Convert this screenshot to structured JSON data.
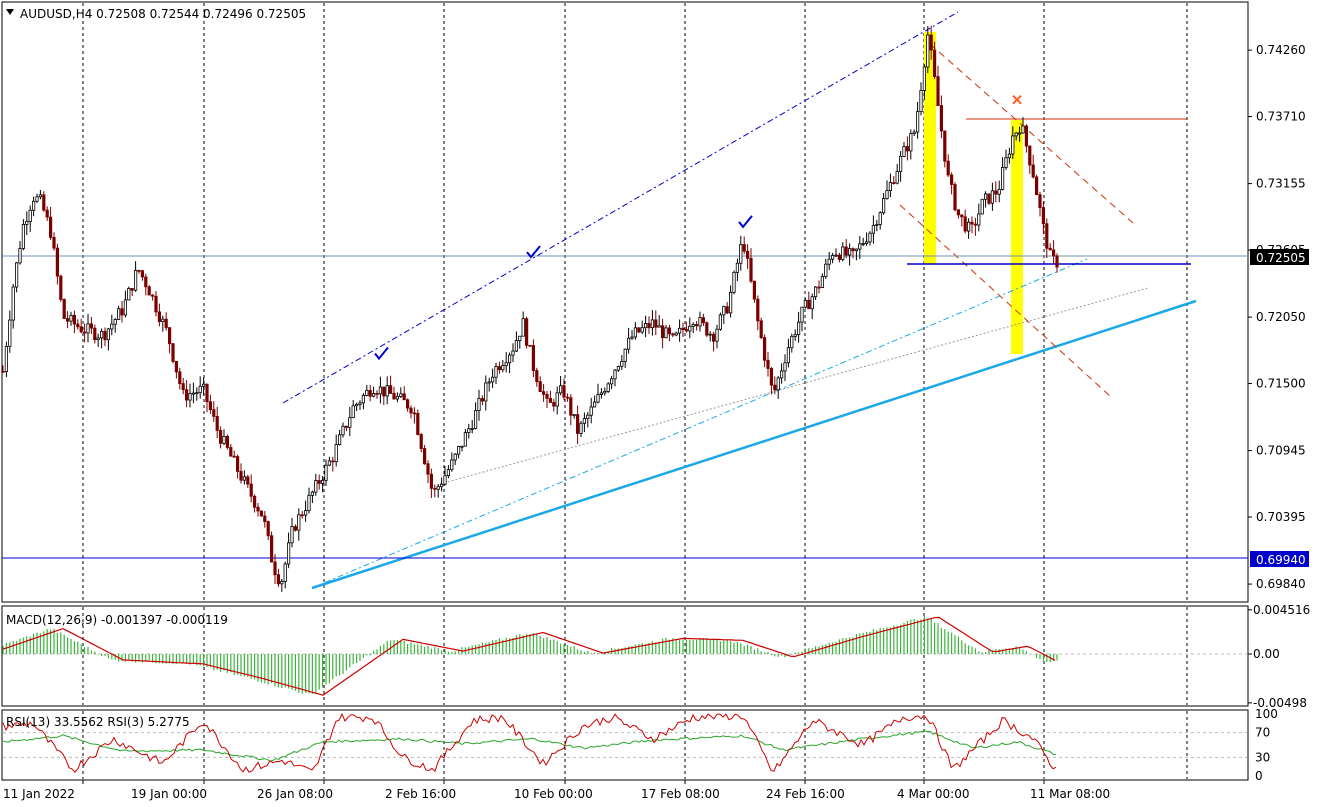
{
  "symbol_header": "AUDUSD,H4  0.72508 0.72544 0.72496 0.72505",
  "macd_header": "MACD(12,26,9) -0.001397 -0.000119",
  "rsi_header": "RSI(13) 33.5562  RSI(3) 5.2775",
  "colors": {
    "bull_candle": "#000000",
    "bear_candle": "#7a0000",
    "trend_line": "#19a8e8",
    "horizontal_level": "#0000cc",
    "resistance": "#d03000",
    "highlight": "#ffff00",
    "macd_hist": "#3cb43c",
    "macd_signal": "#cc0000",
    "rsi_fast": "#cc0000",
    "rsi_slow": "#2aa52a"
  },
  "chart_data": [
    {
      "type": "candlestick",
      "name": "AUDUSD,H4",
      "ylim": [
        0.697,
        0.7465
      ],
      "y_ticks": [
        "0.74260",
        "0.73710",
        "0.73155",
        "0.72605",
        "0.72050",
        "0.71500",
        "0.70945",
        "0.70395",
        "0.69840"
      ],
      "x_ticks": [
        "11 Jan 2022",
        "19 Jan 00:00",
        "26 Jan 08:00",
        "2 Feb 16:00",
        "10 Feb 00:00",
        "17 Feb 08:00",
        "24 Feb 16:00",
        "4 Mar 00:00",
        "11 Mar 08:00"
      ],
      "current_price_label": "0.72505",
      "level_label": "0.69940",
      "levels": [
        0.6994,
        0.72505,
        0.7245,
        0.7367
      ],
      "key_points": [
        {
          "t": 0,
          "p": 0.716
        },
        {
          "t": 10,
          "p": 0.723
        },
        {
          "t": 20,
          "p": 0.728
        },
        {
          "t": 30,
          "p": 0.7305
        },
        {
          "t": 38,
          "p": 0.73
        },
        {
          "t": 48,
          "p": 0.7275
        },
        {
          "t": 60,
          "p": 0.7205
        },
        {
          "t": 80,
          "p": 0.7195
        },
        {
          "t": 100,
          "p": 0.719
        },
        {
          "t": 120,
          "p": 0.7212
        },
        {
          "t": 135,
          "p": 0.7245
        },
        {
          "t": 145,
          "p": 0.723
        },
        {
          "t": 165,
          "p": 0.719
        },
        {
          "t": 180,
          "p": 0.714
        },
        {
          "t": 200,
          "p": 0.7145
        },
        {
          "t": 215,
          "p": 0.711
        },
        {
          "t": 240,
          "p": 0.707
        },
        {
          "t": 260,
          "p": 0.704
        },
        {
          "t": 270,
          "p": 0.7
        },
        {
          "t": 278,
          "p": 0.6985
        },
        {
          "t": 290,
          "p": 0.703
        },
        {
          "t": 310,
          "p": 0.706
        },
        {
          "t": 330,
          "p": 0.709
        },
        {
          "t": 350,
          "p": 0.713
        },
        {
          "t": 370,
          "p": 0.7148
        },
        {
          "t": 390,
          "p": 0.714
        },
        {
          "t": 410,
          "p": 0.713
        },
        {
          "t": 430,
          "p": 0.7058
        },
        {
          "t": 450,
          "p": 0.7085
        },
        {
          "t": 470,
          "p": 0.712
        },
        {
          "t": 490,
          "p": 0.716
        },
        {
          "t": 510,
          "p": 0.718
        },
        {
          "t": 520,
          "p": 0.72
        },
        {
          "t": 530,
          "p": 0.7165
        },
        {
          "t": 545,
          "p": 0.713
        },
        {
          "t": 560,
          "p": 0.7145
        },
        {
          "t": 575,
          "p": 0.711
        },
        {
          "t": 590,
          "p": 0.713
        },
        {
          "t": 610,
          "p": 0.716
        },
        {
          "t": 630,
          "p": 0.719
        },
        {
          "t": 650,
          "p": 0.72
        },
        {
          "t": 670,
          "p": 0.7185
        },
        {
          "t": 690,
          "p": 0.7205
        },
        {
          "t": 710,
          "p": 0.719
        },
        {
          "t": 725,
          "p": 0.7215
        },
        {
          "t": 740,
          "p": 0.727
        },
        {
          "t": 755,
          "p": 0.72
        },
        {
          "t": 770,
          "p": 0.714
        },
        {
          "t": 785,
          "p": 0.718
        },
        {
          "t": 800,
          "p": 0.721
        },
        {
          "t": 815,
          "p": 0.723
        },
        {
          "t": 830,
          "p": 0.726
        },
        {
          "t": 850,
          "p": 0.7255
        },
        {
          "t": 870,
          "p": 0.728
        },
        {
          "t": 885,
          "p": 0.731
        },
        {
          "t": 900,
          "p": 0.734
        },
        {
          "t": 912,
          "p": 0.736
        },
        {
          "t": 925,
          "p": 0.744
        },
        {
          "t": 935,
          "p": 0.738
        },
        {
          "t": 945,
          "p": 0.732
        },
        {
          "t": 955,
          "p": 0.729
        },
        {
          "t": 968,
          "p": 0.7275
        },
        {
          "t": 980,
          "p": 0.73
        },
        {
          "t": 995,
          "p": 0.731
        },
        {
          "t": 1010,
          "p": 0.7355
        },
        {
          "t": 1018,
          "p": 0.7365
        },
        {
          "t": 1030,
          "p": 0.7325
        },
        {
          "t": 1040,
          "p": 0.728
        },
        {
          "t": 1048,
          "p": 0.7252
        },
        {
          "t": 1055,
          "p": 0.72505
        }
      ],
      "annotations": [
        {
          "kind": "check",
          "t": 378,
          "p": 0.7174
        },
        {
          "kind": "check",
          "t": 530,
          "p": 0.7258
        },
        {
          "kind": "check",
          "t": 742,
          "p": 0.7283
        },
        {
          "kind": "cross",
          "t": 1014,
          "p": 0.7385
        }
      ]
    },
    {
      "type": "histogram+line",
      "name": "MACD(12,26,9)",
      "ylim": [
        -0.0052,
        0.0048
      ],
      "y_ticks": [
        "0.004516",
        "0.00",
        "-0.00498"
      ],
      "key_points": [
        {
          "t": 0,
          "v": 0.0005
        },
        {
          "t": 60,
          "v": 0.0026
        },
        {
          "t": 120,
          "v": -0.0006
        },
        {
          "t": 200,
          "v": -0.001
        },
        {
          "t": 260,
          "v": -0.0025
        },
        {
          "t": 320,
          "v": -0.0042
        },
        {
          "t": 400,
          "v": 0.0015
        },
        {
          "t": 460,
          "v": 0.0003
        },
        {
          "t": 540,
          "v": 0.0022
        },
        {
          "t": 600,
          "v": 0.0001
        },
        {
          "t": 680,
          "v": 0.0016
        },
        {
          "t": 740,
          "v": 0.0014
        },
        {
          "t": 790,
          "v": -0.0003
        },
        {
          "t": 860,
          "v": 0.0018
        },
        {
          "t": 935,
          "v": 0.0038
        },
        {
          "t": 990,
          "v": 0.0002
        },
        {
          "t": 1025,
          "v": 0.0008
        },
        {
          "t": 1055,
          "v": -0.0008
        }
      ]
    },
    {
      "type": "line",
      "name": "RSI",
      "ylim": [
        -5,
        105
      ],
      "y_ticks": [
        "100",
        "70",
        "30",
        "0"
      ],
      "series": [
        {
          "name": "RSI(13)",
          "key_points": [
            {
              "t": 0,
              "v": 55
            },
            {
              "t": 60,
              "v": 65
            },
            {
              "t": 120,
              "v": 40
            },
            {
              "t": 200,
              "v": 42
            },
            {
              "t": 270,
              "v": 25
            },
            {
              "t": 320,
              "v": 55
            },
            {
              "t": 400,
              "v": 60
            },
            {
              "t": 460,
              "v": 52
            },
            {
              "t": 530,
              "v": 60
            },
            {
              "t": 580,
              "v": 45
            },
            {
              "t": 650,
              "v": 58
            },
            {
              "t": 740,
              "v": 65
            },
            {
              "t": 780,
              "v": 42
            },
            {
              "t": 860,
              "v": 60
            },
            {
              "t": 925,
              "v": 72
            },
            {
              "t": 970,
              "v": 45
            },
            {
              "t": 1015,
              "v": 55
            },
            {
              "t": 1055,
              "v": 33.6
            }
          ]
        },
        {
          "name": "RSI(3)",
          "key_points": [
            {
              "t": 0,
              "v": 80
            },
            {
              "t": 30,
              "v": 85
            },
            {
              "t": 70,
              "v": 10
            },
            {
              "t": 110,
              "v": 60
            },
            {
              "t": 160,
              "v": 20
            },
            {
              "t": 200,
              "v": 90
            },
            {
              "t": 240,
              "v": 10
            },
            {
              "t": 280,
              "v": 25
            },
            {
              "t": 310,
              "v": 5
            },
            {
              "t": 335,
              "v": 95
            },
            {
              "t": 370,
              "v": 95
            },
            {
              "t": 400,
              "v": 30
            },
            {
              "t": 430,
              "v": 10
            },
            {
              "t": 470,
              "v": 90
            },
            {
              "t": 500,
              "v": 95
            },
            {
              "t": 540,
              "v": 20
            },
            {
              "t": 580,
              "v": 80
            },
            {
              "t": 610,
              "v": 95
            },
            {
              "t": 650,
              "v": 60
            },
            {
              "t": 690,
              "v": 95
            },
            {
              "t": 740,
              "v": 98
            },
            {
              "t": 770,
              "v": 5
            },
            {
              "t": 810,
              "v": 90
            },
            {
              "t": 860,
              "v": 50
            },
            {
              "t": 900,
              "v": 95
            },
            {
              "t": 925,
              "v": 98
            },
            {
              "t": 950,
              "v": 10
            },
            {
              "t": 1000,
              "v": 90
            },
            {
              "t": 1030,
              "v": 60
            },
            {
              "t": 1055,
              "v": 5.3
            }
          ]
        }
      ]
    }
  ]
}
